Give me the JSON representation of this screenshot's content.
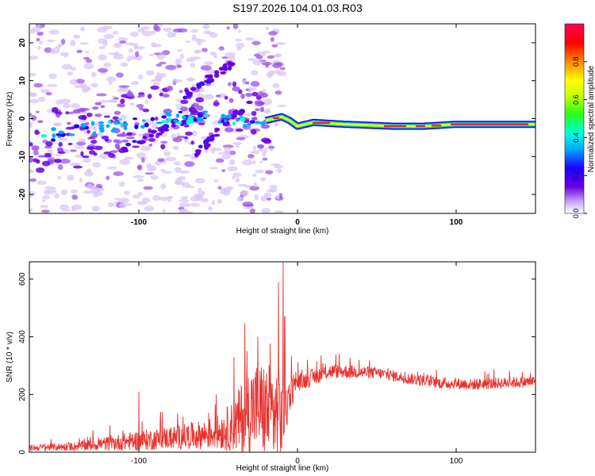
{
  "title": "S197.2026.104.01.03.R03",
  "colors": {
    "snr_line": "#e8322d",
    "axis": "#000000",
    "colorbar": [
      "#ffffff",
      "#b78cf0",
      "#6a00e0",
      "#1c00ff",
      "#00aaff",
      "#00ffdd",
      "#22ff22",
      "#c8ff00",
      "#ffff00",
      "#ff8800",
      "#ff0000",
      "#ff0050"
    ]
  },
  "chart_data": [
    {
      "type": "heatmap",
      "name": "spectrogram",
      "xlabel": "Height of straight line (km)",
      "ylabel": "Frequency (Hz)",
      "xlim": [
        -169,
        150
      ],
      "ylim": [
        -25,
        25
      ],
      "xticks": [
        -100,
        0,
        100
      ],
      "xtick_labels": [
        "-100",
        "0",
        "100"
      ],
      "yticks": [
        -20,
        -10,
        0,
        10,
        20
      ],
      "ytick_labels": [
        "-20",
        "-10",
        "0",
        "10",
        "20"
      ],
      "colorbar": {
        "label": "Normalized spectral amplitude",
        "range": [
          0,
          1
        ],
        "ticks": [
          0.0,
          0.2,
          0.4,
          0.6,
          0.8
        ],
        "tick_labels": [
          "0.0",
          "0.2",
          "0.4",
          "0.6",
          "0.8"
        ]
      },
      "ridge": {
        "description_points_x": [
          -169,
          -150,
          -120,
          -100,
          -80,
          -60,
          -40,
          -25,
          -15,
          -10,
          -5,
          0,
          10,
          30,
          60,
          80,
          100,
          120,
          150
        ],
        "description_points_y": [
          -5,
          -4,
          -2,
          -1,
          0,
          1,
          0,
          -1,
          0,
          0.5,
          -0.5,
          -2,
          -1,
          -1.5,
          -2,
          -2,
          -1.5,
          -1.5,
          -1.5
        ]
      }
    },
    {
      "type": "line",
      "name": "snr",
      "xlabel": "Height of straight line (km)",
      "ylabel": "SNR (10 * v/v)",
      "xlim": [
        -169,
        150
      ],
      "ylim": [
        0,
        660
      ],
      "xticks": [
        -100,
        0,
        100
      ],
      "xtick_labels": [
        "-100",
        "0",
        "100"
      ],
      "yticks": [
        0,
        200,
        400,
        600
      ],
      "ytick_labels": [
        "0",
        "200",
        "400",
        "600"
      ],
      "series": [
        {
          "name": "SNR",
          "envelope_x": [
            -169,
            -140,
            -120,
            -100,
            -80,
            -60,
            -50,
            -40,
            -35,
            -30,
            -25,
            -20,
            -15,
            -10,
            -5,
            0,
            10,
            20,
            30,
            50,
            70,
            90,
            110,
            130,
            150
          ],
          "envelope_base": [
            15,
            20,
            30,
            40,
            50,
            60,
            70,
            90,
            120,
            150,
            160,
            140,
            130,
            120,
            200,
            240,
            260,
            280,
            280,
            275,
            255,
            240,
            235,
            240,
            245
          ],
          "envelope_noise": [
            10,
            15,
            25,
            35,
            40,
            50,
            60,
            90,
            130,
            150,
            160,
            170,
            180,
            170,
            60,
            30,
            30,
            25,
            25,
            20,
            20,
            20,
            20,
            20,
            20
          ],
          "spikes": [
            [
              -12,
              590
            ],
            [
              -9,
              660
            ],
            [
              -8,
              470
            ],
            [
              -25,
              400
            ],
            [
              -40,
              330
            ],
            [
              -100,
              210
            ]
          ]
        }
      ]
    }
  ]
}
